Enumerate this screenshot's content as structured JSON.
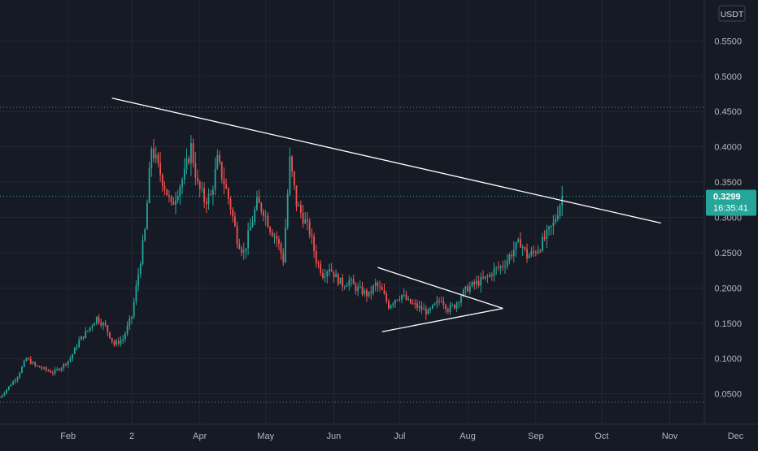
{
  "chart_data": {
    "type": "candlestick",
    "title": "",
    "currency": "USDT",
    "colors": {
      "background": "#161a25",
      "up": "#26a69a",
      "down": "#ef5350",
      "grid": "#232733",
      "axis_text": "#b2b5be",
      "trendline": "#ffffff",
      "dotted_line": "#787b86",
      "price_label_bg": "#26a69a"
    },
    "y_axis": {
      "ylim": [
        0.03,
        0.585
      ],
      "ticks": [
        {
          "value": 0.05,
          "label": "0.0500"
        },
        {
          "value": 0.1,
          "label": "0.1000"
        },
        {
          "value": 0.15,
          "label": "0.1500"
        },
        {
          "value": 0.2,
          "label": "0.2000"
        },
        {
          "value": 0.25,
          "label": "0.2500"
        },
        {
          "value": 0.3,
          "label": "0.3000"
        },
        {
          "value": 0.35,
          "label": "0.3500"
        },
        {
          "value": 0.4,
          "label": "0.4000"
        },
        {
          "value": 0.45,
          "label": "0.4500"
        },
        {
          "value": 0.5,
          "label": "0.5000"
        },
        {
          "value": 0.55,
          "label": "0.5500"
        }
      ]
    },
    "x_axis": {
      "ticks": [
        {
          "label": "Feb",
          "day": 31
        },
        {
          "label": "2",
          "day": 60
        },
        {
          "label": "Apr",
          "day": 91
        },
        {
          "label": "May",
          "day": 121
        },
        {
          "label": "Jun",
          "day": 152
        },
        {
          "label": "Jul",
          "day": 182
        },
        {
          "label": "Aug",
          "day": 213
        },
        {
          "label": "Sep",
          "day": 244
        },
        {
          "label": "Oct",
          "day": 274
        },
        {
          "label": "Nov",
          "day": 305
        },
        {
          "label": "Dec",
          "day": 335
        }
      ]
    },
    "current_price": {
      "value": 0.3299,
      "label": "0.3299",
      "countdown": "16:35:41"
    },
    "horizontal_levels": [
      0.456,
      0.038
    ],
    "trendlines": [
      {
        "x1": 51,
        "y1": 0.469,
        "x2": 301,
        "y2": 0.292
      },
      {
        "x1": 172,
        "y1": 0.229,
        "x2": 229,
        "y2": 0.171
      },
      {
        "x1": 174,
        "y1": 0.138,
        "x2": 229,
        "y2": 0.171
      }
    ],
    "price_path": [
      [
        0,
        0.045
      ],
      [
        4,
        0.06
      ],
      [
        8,
        0.075
      ],
      [
        12,
        0.1
      ],
      [
        16,
        0.09
      ],
      [
        20,
        0.085
      ],
      [
        24,
        0.08
      ],
      [
        28,
        0.088
      ],
      [
        32,
        0.1
      ],
      [
        36,
        0.125
      ],
      [
        40,
        0.14
      ],
      [
        44,
        0.158
      ],
      [
        48,
        0.145
      ],
      [
        52,
        0.12
      ],
      [
        56,
        0.128
      ],
      [
        60,
        0.16
      ],
      [
        63,
        0.22
      ],
      [
        66,
        0.28
      ],
      [
        69,
        0.4
      ],
      [
        72,
        0.37
      ],
      [
        75,
        0.345
      ],
      [
        78,
        0.315
      ],
      [
        81,
        0.34
      ],
      [
        84,
        0.36
      ],
      [
        87,
        0.4
      ],
      [
        90,
        0.345
      ],
      [
        93,
        0.325
      ],
      [
        96,
        0.33
      ],
      [
        99,
        0.38
      ],
      [
        102,
        0.35
      ],
      [
        105,
        0.315
      ],
      [
        108,
        0.27
      ],
      [
        111,
        0.25
      ],
      [
        114,
        0.285
      ],
      [
        117,
        0.32
      ],
      [
        120,
        0.31
      ],
      [
        123,
        0.285
      ],
      [
        126,
        0.27
      ],
      [
        129,
        0.24
      ],
      [
        132,
        0.38
      ],
      [
        135,
        0.32
      ],
      [
        138,
        0.3
      ],
      [
        141,
        0.28
      ],
      [
        144,
        0.24
      ],
      [
        147,
        0.22
      ],
      [
        150,
        0.23
      ],
      [
        153,
        0.215
      ],
      [
        156,
        0.205
      ],
      [
        159,
        0.21
      ],
      [
        162,
        0.2
      ],
      [
        165,
        0.195
      ],
      [
        168,
        0.19
      ],
      [
        171,
        0.205
      ],
      [
        174,
        0.195
      ],
      [
        177,
        0.175
      ],
      [
        180,
        0.185
      ],
      [
        183,
        0.19
      ],
      [
        186,
        0.18
      ],
      [
        189,
        0.175
      ],
      [
        192,
        0.17
      ],
      [
        195,
        0.165
      ],
      [
        198,
        0.175
      ],
      [
        201,
        0.185
      ],
      [
        204,
        0.17
      ],
      [
        207,
        0.175
      ],
      [
        210,
        0.19
      ],
      [
        213,
        0.2
      ],
      [
        216,
        0.205
      ],
      [
        219,
        0.21
      ],
      [
        222,
        0.215
      ],
      [
        225,
        0.225
      ],
      [
        228,
        0.23
      ],
      [
        231,
        0.24
      ],
      [
        234,
        0.255
      ],
      [
        237,
        0.265
      ],
      [
        240,
        0.245
      ],
      [
        243,
        0.25
      ],
      [
        246,
        0.26
      ],
      [
        249,
        0.275
      ],
      [
        252,
        0.29
      ],
      [
        254,
        0.31
      ],
      [
        256,
        0.3299
      ]
    ]
  }
}
